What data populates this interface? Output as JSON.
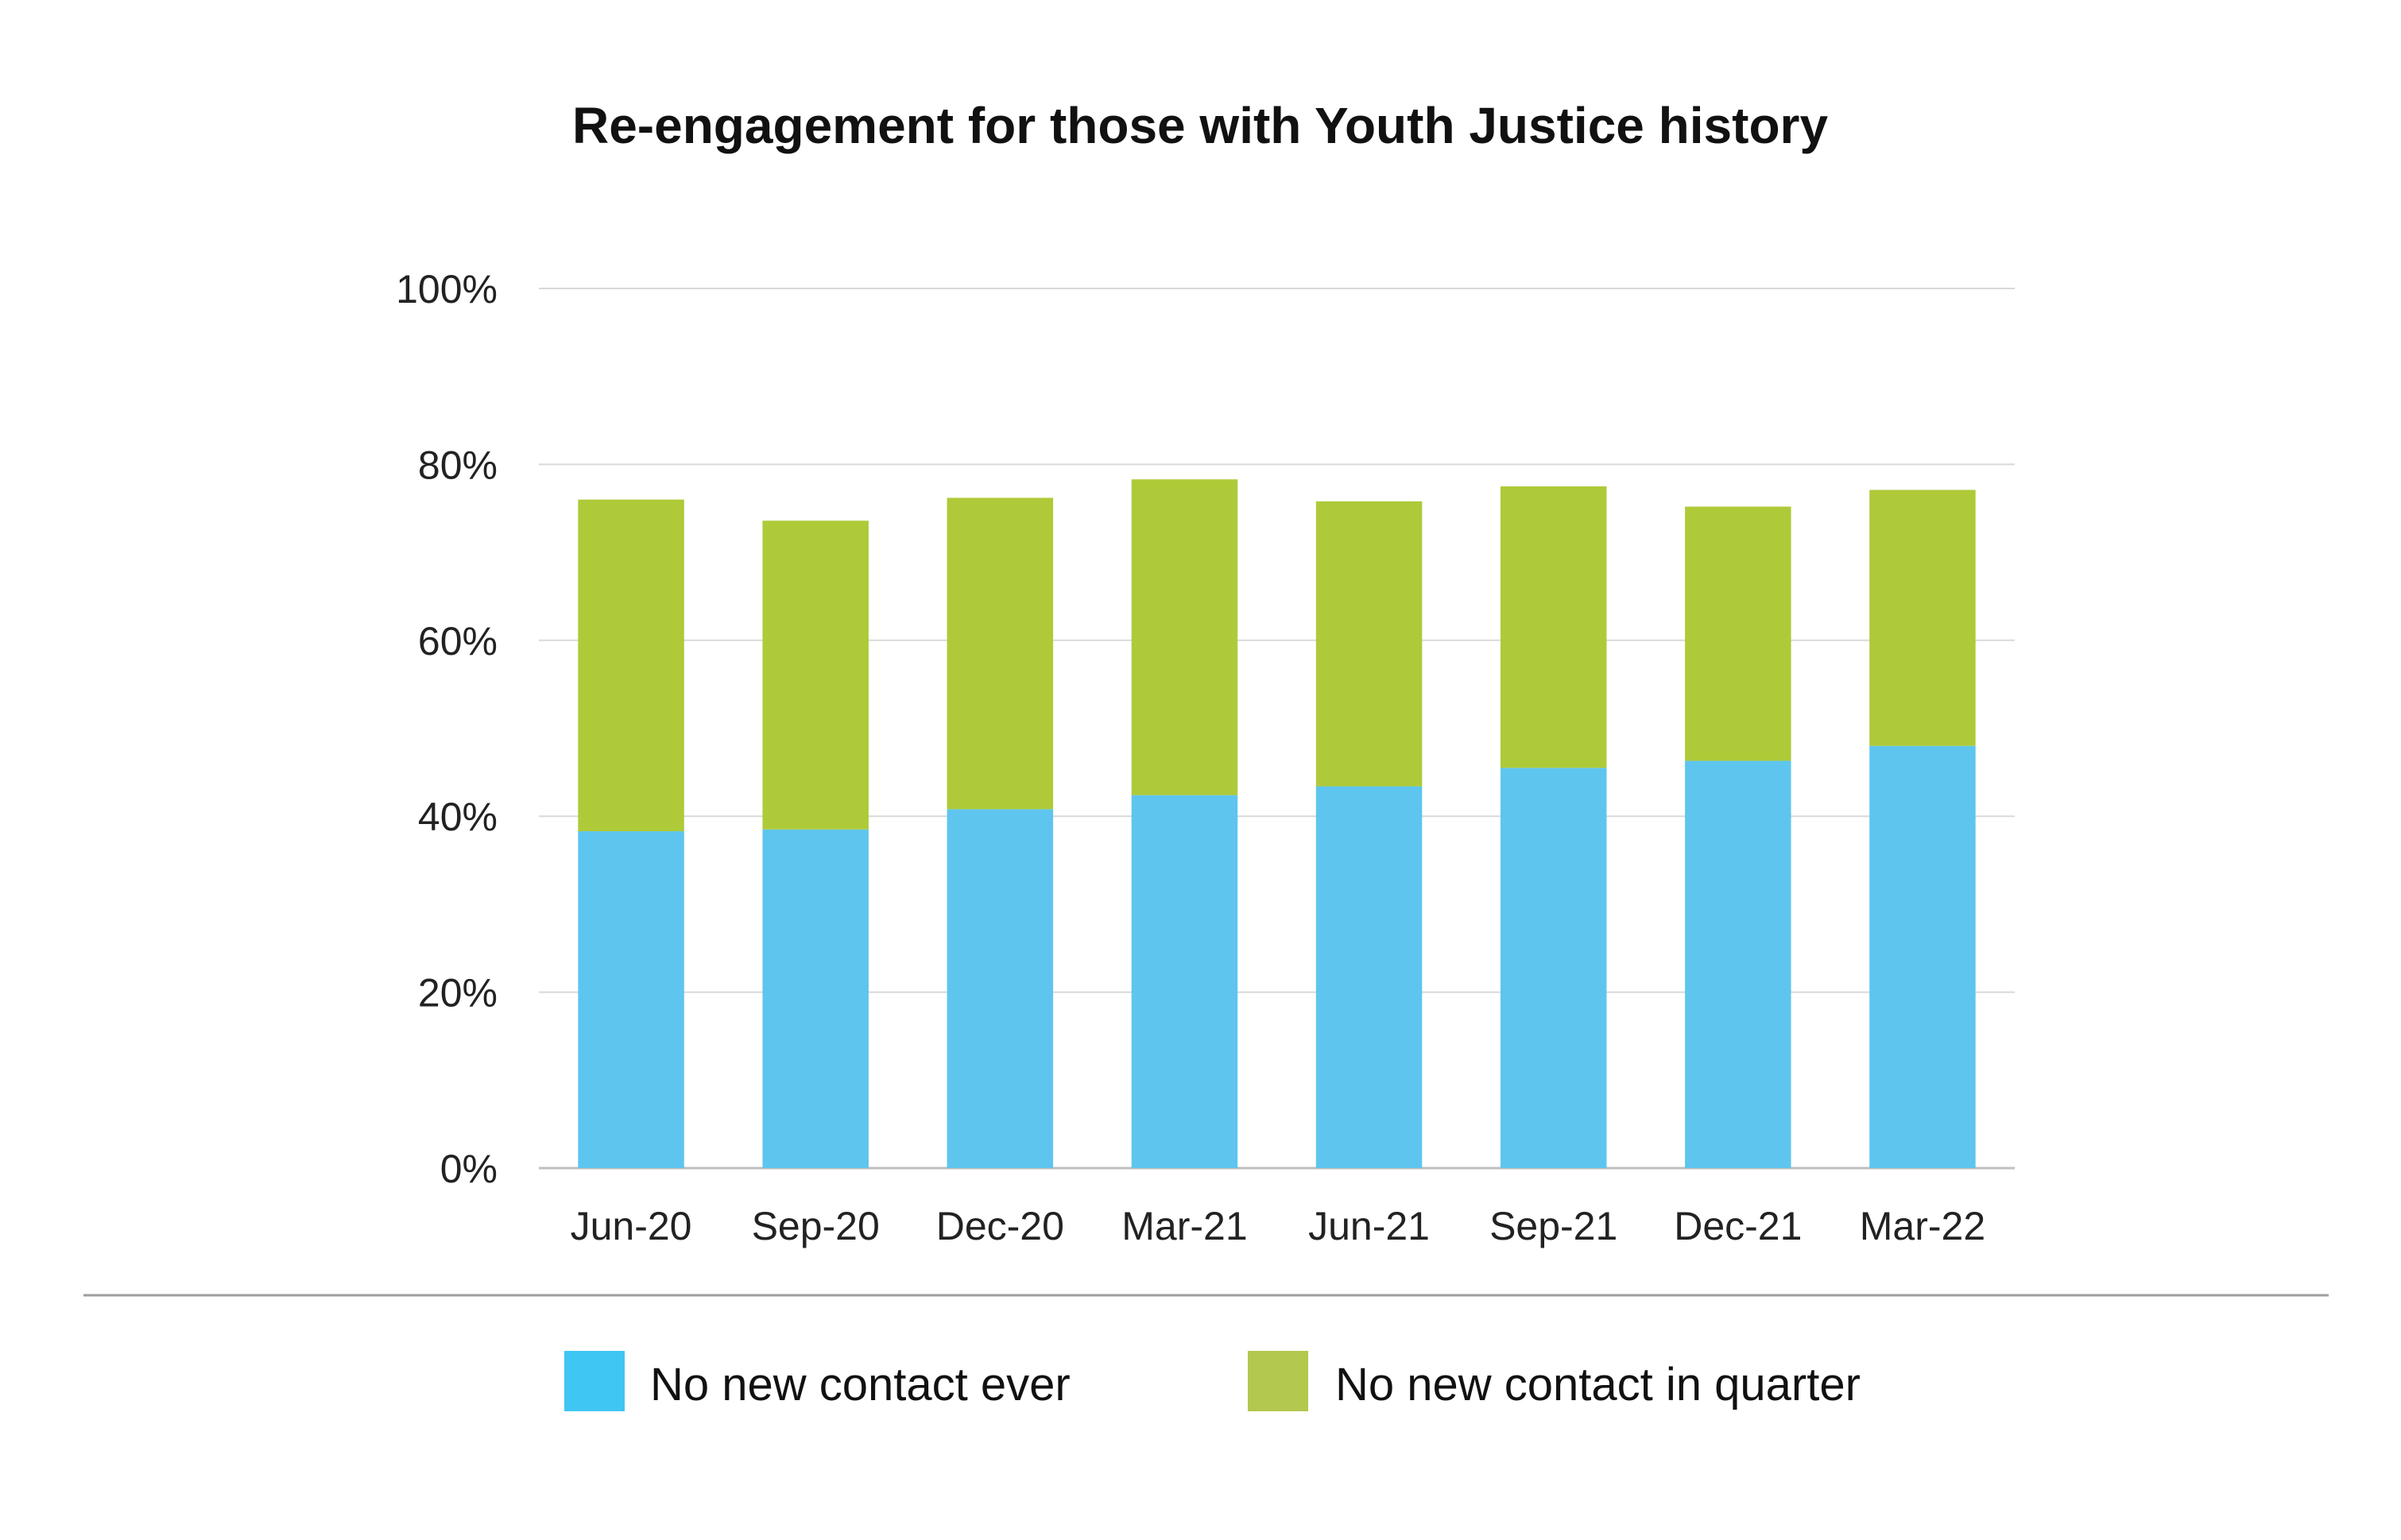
{
  "chart_data": {
    "type": "bar",
    "stacked": true,
    "title": "Re-engagement for those with Youth Justice history",
    "xlabel": "",
    "ylabel": "",
    "ylim": [
      0,
      100
    ],
    "y_ticks": [
      "0%",
      "20%",
      "40%",
      "60%",
      "80%",
      "100%"
    ],
    "grid": true,
    "legend_position": "bottom",
    "categories": [
      "Jun-20",
      "Sep-20",
      "Dec-20",
      "Mar-21",
      "Jun-21",
      "Sep-21",
      "Dec-21",
      "Mar-22"
    ],
    "series": [
      {
        "name": "No new contact ever",
        "color": "#5EC5EE",
        "legend_color": "#3FC6F3",
        "values": [
          38.3,
          38.5,
          40.8,
          42.4,
          43.4,
          45.5,
          46.3,
          48.0
        ]
      },
      {
        "name": "No new contact in quarter",
        "color": "#AECA39",
        "legend_color": "#B2C84F",
        "values": [
          37.7,
          35.1,
          35.4,
          35.9,
          32.4,
          32.0,
          28.9,
          29.1
        ]
      }
    ]
  },
  "colors": {
    "grid": "#D9D9D9",
    "axis": "#BFBFBF",
    "separator": "#9E9E9E"
  }
}
